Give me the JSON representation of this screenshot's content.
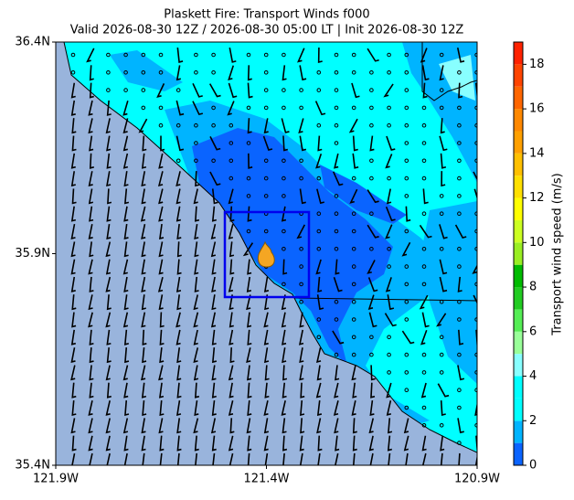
{
  "chart_data": {
    "type": "map",
    "title": "Plaskett Fire: Transport Winds f000",
    "subtitle": "Valid 2026-08-30 12Z / 2026-08-30 05:00 LT | Init 2026-08-30 12Z",
    "xlim": [
      -121.9,
      -120.9
    ],
    "xticks": [
      {
        "value": -121.9,
        "label": "121.9W"
      },
      {
        "value": -121.4,
        "label": "121.4W"
      },
      {
        "value": -120.9,
        "label": "120.9W"
      }
    ],
    "ylim": [
      35.4,
      36.4
    ],
    "yticks": [
      {
        "value": 35.4,
        "label": "35.4N"
      },
      {
        "value": 35.9,
        "label": "35.9N"
      },
      {
        "value": 36.4,
        "label": "36.4N"
      }
    ],
    "colorbar": {
      "label": "Transport wind speed (m/s)",
      "lim": [
        0,
        19
      ],
      "ticks": [
        0,
        2,
        4,
        6,
        8,
        10,
        12,
        14,
        16,
        18
      ],
      "boundaries": [
        0,
        1,
        2,
        3,
        4,
        5,
        6,
        7,
        8,
        9,
        10,
        11,
        12,
        13,
        14,
        15,
        16,
        17,
        18,
        19
      ],
      "colors": [
        "#0a64ff",
        "#00b4ff",
        "#00ffff",
        "#00ffff",
        "#88ffff",
        "#99ff99",
        "#55ee55",
        "#22cc22",
        "#00bb00",
        "#99ee22",
        "#ccff22",
        "#ffff00",
        "#ffe000",
        "#ffc000",
        "#ffa000",
        "#ff8800",
        "#ff6600",
        "#ff4400",
        "#ff2200"
      ]
    }
  }
}
